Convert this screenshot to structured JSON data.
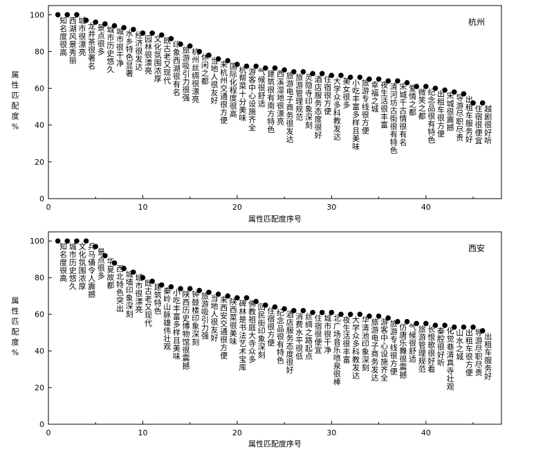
{
  "chart_data": [
    {
      "type": "scatter",
      "title": "杭州",
      "xlabel": "属性匹配度序号",
      "ylabel": "属性匹配度%",
      "xlim": [
        0,
        48
      ],
      "ylim": [
        0,
        105
      ],
      "xticks": [
        0,
        10,
        20,
        30,
        40
      ],
      "yticks": [
        0,
        20,
        40,
        60,
        80,
        100
      ],
      "grid": false,
      "x": [
        1,
        2,
        3,
        4,
        5,
        6,
        7,
        8,
        9,
        10,
        11,
        12,
        13,
        14,
        15,
        16,
        17,
        18,
        19,
        20,
        21,
        22,
        23,
        24,
        25,
        26,
        27,
        28,
        29,
        30,
        31,
        32,
        33,
        34,
        35,
        36,
        37,
        38,
        39,
        40,
        41,
        42,
        43,
        44,
        45,
        46
      ],
      "values": [
        100,
        100,
        100,
        97,
        96,
        95,
        94,
        93,
        92,
        90,
        90,
        89,
        87,
        84,
        83,
        80,
        78,
        76,
        75,
        73,
        72,
        72,
        71,
        71,
        70,
        69,
        69,
        68,
        68,
        67,
        67,
        66,
        66,
        65,
        65,
        64,
        64,
        63,
        61,
        61,
        60,
        59,
        58,
        57,
        52,
        52
      ],
      "labels": [
        "知名度很高",
        "西湖风景秀丽",
        "城市很漂亮",
        "龙井茶很著名",
        "景点很多",
        "城市历史悠久",
        "城市很干净",
        "水乡特色显著",
        "经济很发达",
        "园林很漂亮",
        "文化氛围浓厚",
        "既古老又现代",
        "印象西湖很有名",
        "旅游吸引力很强",
        "杭州丝绸很漂亮",
        "休闲之都",
        "当地人很友好",
        "来杭州交通很方便",
        "国际化程度很高",
        "杭帮菜十分美味",
        "游客中心设施齐全",
        "气候很舒适",
        "建筑很有南方特色",
        "西溪湿地很漂亮",
        "旅游电子商务很发达",
        "旅游管理规范",
        "灵隐寺印象深刻",
        "酒店服务态度很好",
        "住宿很方便",
        "大学众多科教发达",
        "美女很多",
        "小吃丰富多样且美味",
        "旅游专线很方便",
        "幸福之城",
        "夜生活很丰富",
        "清河坊古街很有特色",
        "宋城千古情很有名",
        "爱情之都",
        "微笑之都",
        "纪念品很有特色",
        "出租车很方便",
        "宋城很震撼",
        "导游尽职尽责",
        "出租车服务好",
        "住宿很便宜",
        "越剧很好听"
      ]
    },
    {
      "type": "scatter",
      "title": "西安",
      "xlabel": "属性匹配度序号",
      "ylabel": "属性匹配度%",
      "xlim": [
        0,
        48
      ],
      "ylim": [
        0,
        105
      ],
      "xticks": [
        0,
        10,
        20,
        30,
        40
      ],
      "yticks": [
        0,
        20,
        40,
        60,
        80,
        100
      ],
      "grid": false,
      "x": [
        1,
        2,
        3,
        4,
        5,
        6,
        7,
        8,
        9,
        10,
        11,
        12,
        13,
        14,
        15,
        16,
        17,
        18,
        19,
        20,
        21,
        22,
        23,
        24,
        25,
        26,
        27,
        28,
        29,
        30,
        31,
        32,
        33,
        34,
        35,
        36,
        37,
        38,
        39,
        40,
        41,
        42,
        43,
        44,
        45,
        46
      ],
      "values": [
        100,
        100,
        100,
        100,
        97,
        92,
        88,
        85,
        83,
        80,
        78,
        76,
        75,
        74,
        74,
        73,
        72,
        71,
        70,
        69,
        69,
        67,
        65,
        64,
        63,
        62,
        62,
        61,
        61,
        61,
        60,
        60,
        60,
        59,
        59,
        58,
        56,
        56,
        55,
        55,
        54,
        54,
        53,
        53,
        53,
        51
      ],
      "labels": [
        "知名度很高",
        "城市历史悠久",
        "文化氛围浓厚",
        "兵马俑令人震撼",
        "景点很多",
        "华夏故都",
        "西北特色突出",
        "城墙印象深刻",
        "城市很漂亮",
        "既古老又现代",
        "建筑特色",
        "秦岭山脉雄伟壮观",
        "小吃丰富多样且美味",
        "陕西历史博物馆很震撼",
        "钟鼓楼印象深刻",
        "旅游吸引力强",
        "当地人很友好",
        "来西安交通很方便",
        "陕西菜很美味",
        "碑林是书法艺术宝库",
        "佛教祖庭大寺众多",
        "回民街印象深刻",
        "住宿很方便",
        "纪念品很有特色",
        "酒店服务态度很好",
        "消费水平很低",
        "丝绸之路起点",
        "住宿很便宜",
        "城市很干净",
        "北广场音乐喷泉很棒",
        "夜生活很丰富",
        "大学众多科教发达",
        "华清池印象深刻",
        "旅游电子商务发达",
        "游客中心设施齐全",
        "旅游专线很方便",
        "仿唐乐舞很震撼",
        "气候很舒适",
        "旅游管理规范",
        "长恨歌很好看",
        "秦腔很好听",
        "化觉巷清真寺壮观",
        "山水之城",
        "出租车很方便",
        "导游尽职尽责",
        "出租车服务好"
      ]
    }
  ]
}
